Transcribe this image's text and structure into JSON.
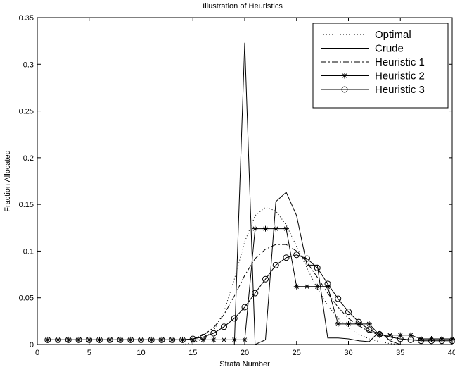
{
  "chart_data": {
    "type": "line",
    "title": "Illustration of Heuristics",
    "xlabel": "Strata Number",
    "ylabel": "Fraction Allocated",
    "xlim": [
      0,
      40
    ],
    "ylim": [
      0,
      0.35
    ],
    "xticks": [
      0,
      5,
      10,
      15,
      20,
      25,
      30,
      35,
      40
    ],
    "yticks": [
      0,
      0.05,
      0.1,
      0.15,
      0.2,
      0.25,
      0.3,
      0.35
    ],
    "grid": false,
    "legend_position": "top-right",
    "x": [
      1,
      2,
      3,
      4,
      5,
      6,
      7,
      8,
      9,
      10,
      11,
      12,
      13,
      14,
      15,
      16,
      17,
      18,
      19,
      20,
      21,
      22,
      23,
      24,
      25,
      26,
      27,
      28,
      29,
      30,
      31,
      32,
      33,
      34,
      35,
      36,
      37,
      38,
      39,
      40
    ],
    "series": [
      {
        "name": "Optimal",
        "style": "dotted",
        "marker": "none",
        "values": [
          0,
          0,
          0,
          0,
          0,
          0,
          0,
          0,
          0,
          0,
          0,
          0,
          0,
          0,
          0.002,
          0.006,
          0.015,
          0.035,
          0.07,
          0.11,
          0.138,
          0.147,
          0.143,
          0.128,
          0.105,
          0.082,
          0.06,
          0.042,
          0.028,
          0.018,
          0.011,
          0.006,
          0.003,
          0.001,
          0,
          0,
          0,
          0,
          0,
          0
        ]
      },
      {
        "name": "Crude",
        "style": "solid",
        "marker": "none",
        "values": [
          0,
          0,
          0,
          0,
          0,
          0,
          0,
          0,
          0,
          0,
          0,
          0,
          0,
          0,
          0,
          0,
          0,
          0,
          0,
          0.323,
          0,
          0.005,
          0.153,
          0.163,
          0.138,
          0.085,
          0.085,
          0.007,
          0.007,
          0.006,
          0.004,
          0.003,
          0.014,
          0.004,
          0,
          0,
          0,
          0,
          0,
          0
        ]
      },
      {
        "name": "Heuristic 1",
        "style": "dashdot",
        "marker": "none",
        "values": [
          0.005,
          0.005,
          0.005,
          0.005,
          0.005,
          0.005,
          0.005,
          0.005,
          0.005,
          0.005,
          0.005,
          0.005,
          0.005,
          0.005,
          0.006,
          0.01,
          0.018,
          0.032,
          0.052,
          0.074,
          0.092,
          0.102,
          0.107,
          0.107,
          0.1,
          0.088,
          0.072,
          0.055,
          0.04,
          0.028,
          0.02,
          0.014,
          0.01,
          0.008,
          0.006,
          0.005,
          0.005,
          0.005,
          0.005,
          0.005
        ]
      },
      {
        "name": "Heuristic 2",
        "style": "solid",
        "marker": "asterisk",
        "values": [
          0.005,
          0.005,
          0.005,
          0.005,
          0.005,
          0.005,
          0.005,
          0.005,
          0.005,
          0.005,
          0.005,
          0.005,
          0.005,
          0.005,
          0.005,
          0.005,
          0.005,
          0.005,
          0.005,
          0.005,
          0.124,
          0.124,
          0.124,
          0.124,
          0.062,
          0.062,
          0.062,
          0.062,
          0.022,
          0.022,
          0.022,
          0.022,
          0.01,
          0.01,
          0.01,
          0.01,
          0.006,
          0.006,
          0.006,
          0.006
        ]
      },
      {
        "name": "Heuristic 3",
        "style": "solid",
        "marker": "circle",
        "values": [
          0.005,
          0.005,
          0.005,
          0.005,
          0.005,
          0.005,
          0.005,
          0.005,
          0.005,
          0.005,
          0.005,
          0.005,
          0.005,
          0.005,
          0.006,
          0.008,
          0.012,
          0.019,
          0.028,
          0.04,
          0.055,
          0.07,
          0.085,
          0.093,
          0.096,
          0.092,
          0.082,
          0.065,
          0.049,
          0.035,
          0.024,
          0.016,
          0.011,
          0.008,
          0.006,
          0.005,
          0.004,
          0.004,
          0.004,
          0.004
        ]
      }
    ]
  }
}
